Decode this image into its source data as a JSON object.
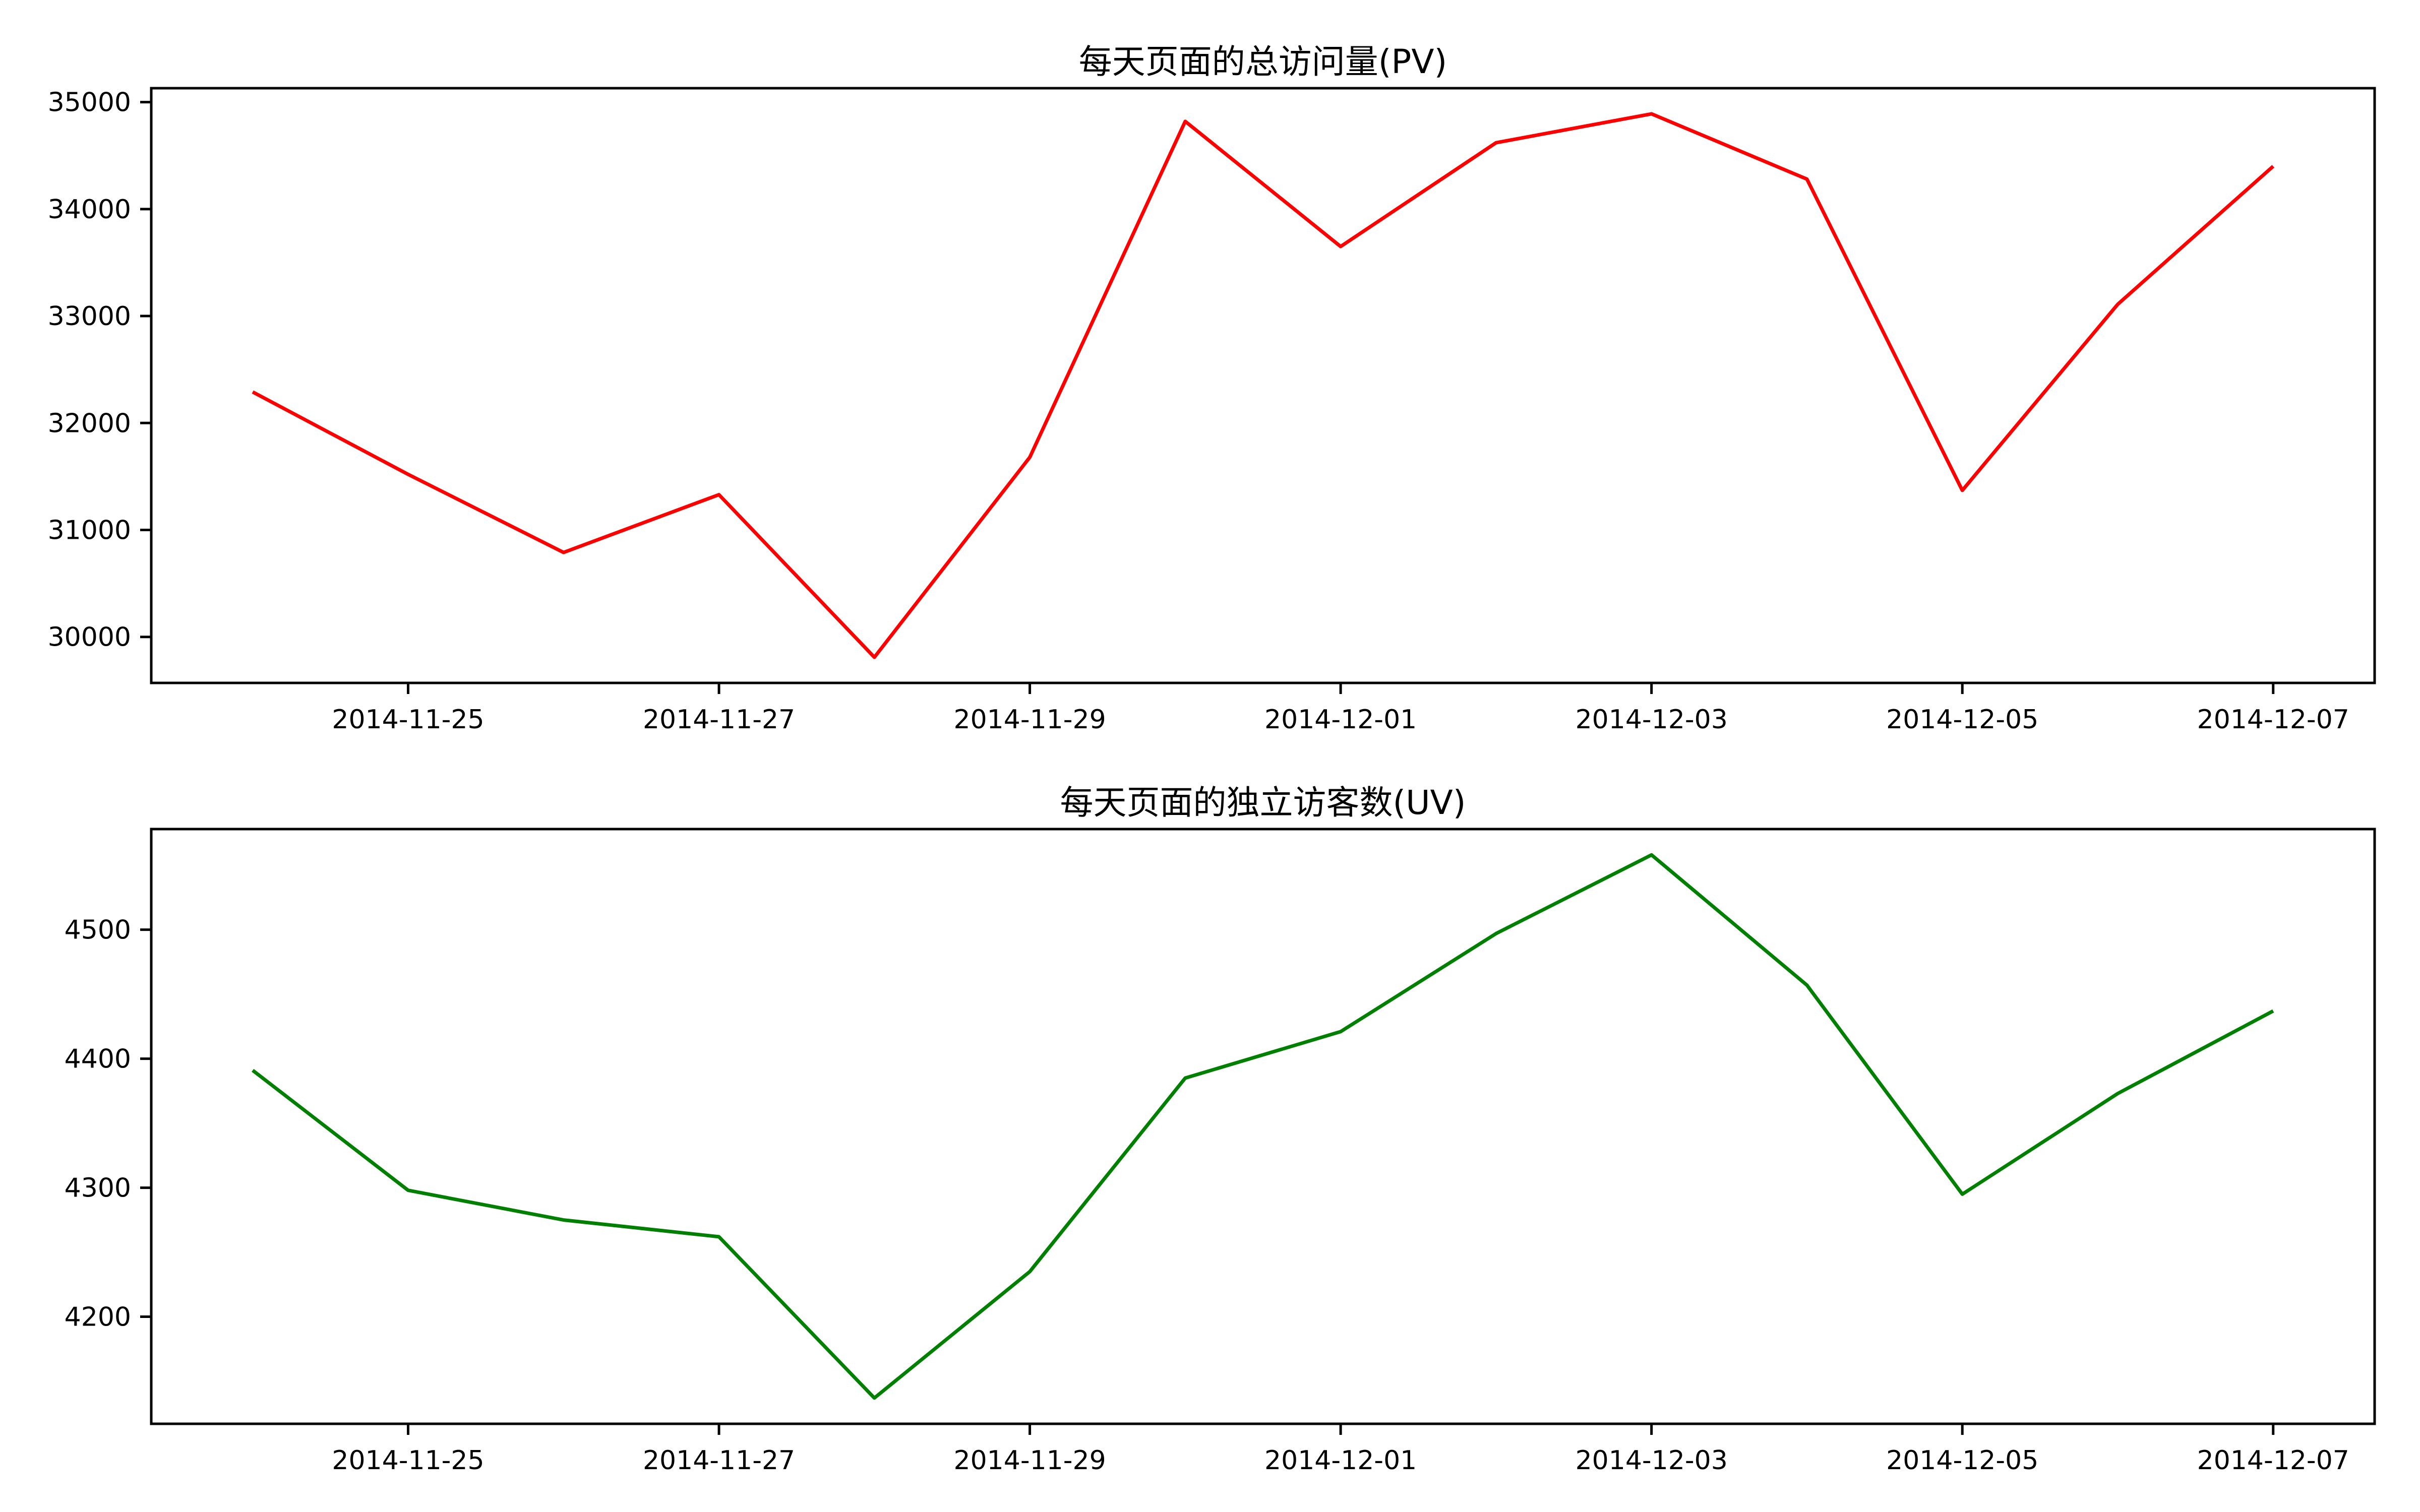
{
  "chart_data": [
    {
      "type": "line",
      "title": "每天页面的总访问量(PV)",
      "xlabel": "",
      "ylabel": "",
      "x": [
        "2014-11-24",
        "2014-11-25",
        "2014-11-26",
        "2014-11-27",
        "2014-11-28",
        "2014-11-29",
        "2014-11-30",
        "2014-12-01",
        "2014-12-02",
        "2014-12-03",
        "2014-12-04",
        "2014-12-05",
        "2014-12-06",
        "2014-12-07"
      ],
      "series": [
        {
          "color": "#ff0000",
          "values": [
            32290,
            31520,
            30790,
            31330,
            29810,
            31680,
            34820,
            33650,
            34620,
            34890,
            34280,
            31370,
            33110,
            34400
          ]
        }
      ],
      "xlim": [
        "2014-11-23T08:20",
        "2014-12-07T15:40"
      ],
      "ylim": [
        29570,
        35130
      ],
      "xticks": [
        "2014-11-25",
        "2014-11-27",
        "2014-11-29",
        "2014-12-01",
        "2014-12-03",
        "2014-12-05",
        "2014-12-07"
      ],
      "yticks": [
        30000,
        31000,
        32000,
        33000,
        34000,
        35000
      ],
      "grid": false
    },
    {
      "type": "line",
      "title": "每天页面的独立访客数(UV)",
      "xlabel": "",
      "ylabel": "",
      "x": [
        "2014-11-24",
        "2014-11-25",
        "2014-11-26",
        "2014-11-27",
        "2014-11-28",
        "2014-11-29",
        "2014-11-30",
        "2014-12-01",
        "2014-12-02",
        "2014-12-03",
        "2014-12-04",
        "2014-12-05",
        "2014-12-06",
        "2014-12-07"
      ],
      "series": [
        {
          "color": "#008000",
          "values": [
            4391,
            4298,
            4275,
            4262,
            4137,
            4235,
            4385,
            4421,
            4497,
            4558,
            4457,
            4295,
            4373,
            4437
          ]
        }
      ],
      "xlim": [
        "2014-11-23T08:20",
        "2014-12-07T15:40"
      ],
      "ylim": [
        4117,
        4578
      ],
      "xticks": [
        "2014-11-25",
        "2014-11-27",
        "2014-11-29",
        "2014-12-01",
        "2014-12-03",
        "2014-12-05",
        "2014-12-07"
      ],
      "yticks": [
        4200,
        4300,
        4400,
        4500
      ],
      "grid": false
    }
  ]
}
